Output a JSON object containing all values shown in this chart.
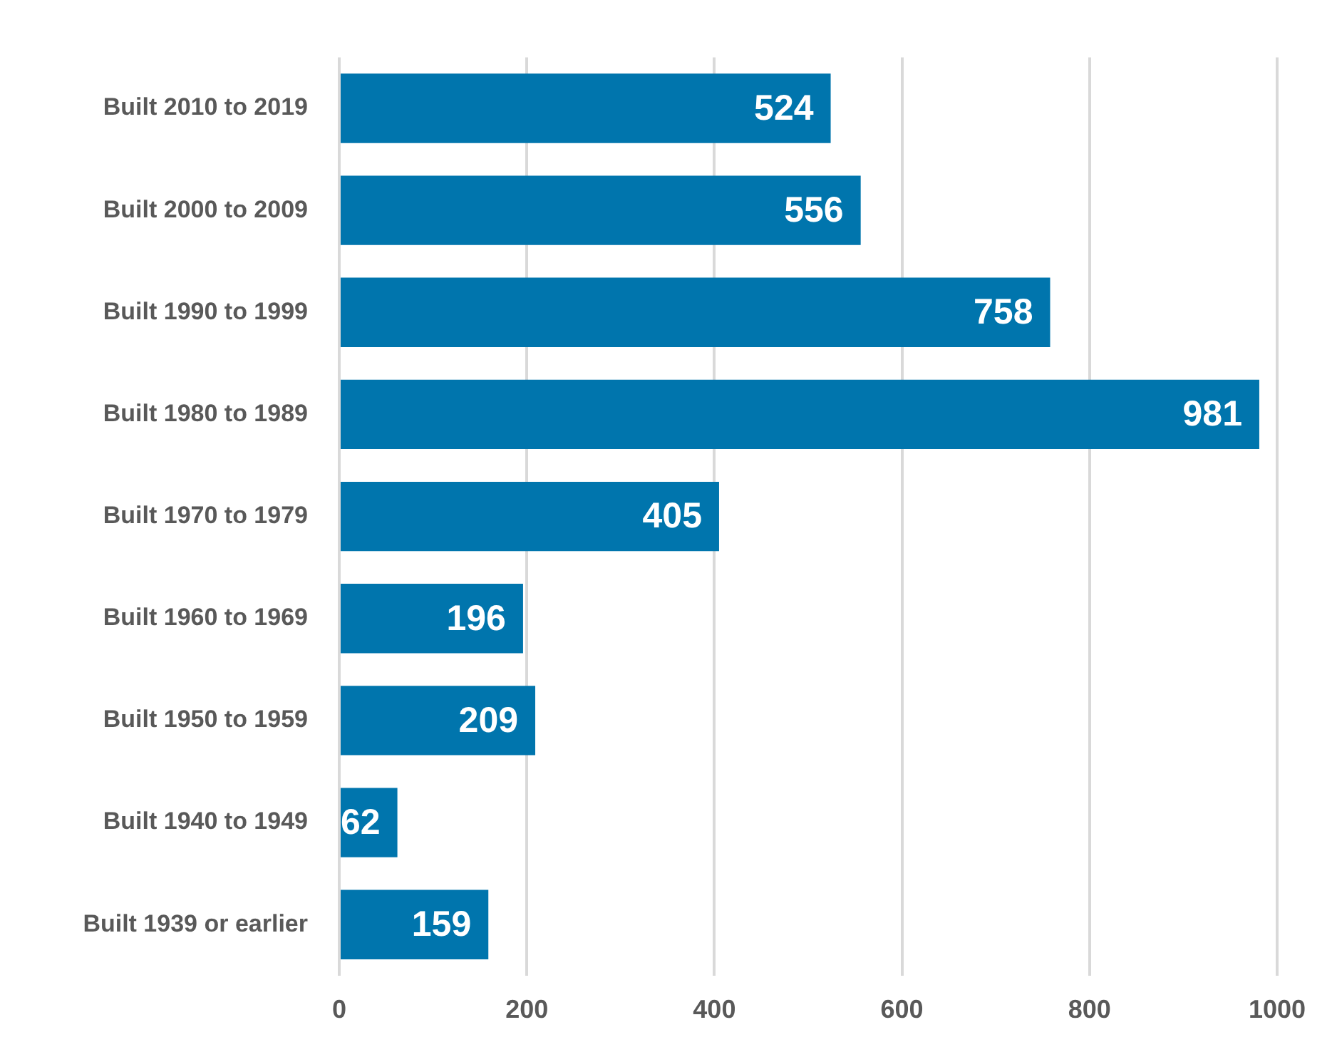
{
  "chart_data": {
    "type": "bar",
    "orientation": "horizontal",
    "categories": [
      "Built 2010 to 2019",
      "Built 2000 to 2009",
      "Built 1990 to 1999",
      "Built 1980 to 1989",
      "Built 1970 to 1979",
      "Built 1960 to 1969",
      "Built 1950 to 1959",
      "Built 1940 to 1949",
      "Built 1939 or earlier"
    ],
    "values": [
      524,
      556,
      758,
      981,
      405,
      196,
      209,
      62,
      159
    ],
    "color": "#0075ad",
    "xlim": [
      0,
      1000
    ],
    "xticks": [
      0,
      200,
      400,
      600,
      800,
      1000
    ],
    "grid": "x",
    "legend": false,
    "data_labels": true
  }
}
